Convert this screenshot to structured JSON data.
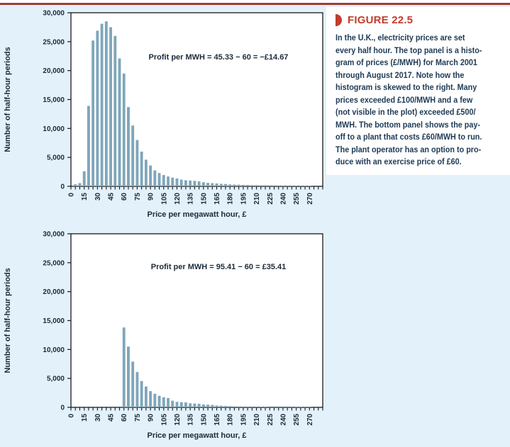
{
  "theme": {
    "background": "#e3f1fb",
    "top_rule": "#a53a33",
    "accent_red": "#c33c2b",
    "caption_text": "#1e3a55",
    "chart_text": "#1c2a3a",
    "bar_fill": "#7fa6ba",
    "axis_line": "#1a1a1a",
    "plot_bg": "#ffffff",
    "panel_bg": "#ffffff"
  },
  "figure_caption": {
    "label": "FIGURE 22.5",
    "icon": "right-half-disc-icon",
    "text_lines": [
      "In the U.K., electricity prices are set",
      "every half hour. The top panel is a histo-",
      "gram of prices (£/MWH) for March 2001",
      "through August 2017. Note how the",
      "histogram is skewed to the right. Many",
      "prices exceeded £100/MWH and a few",
      "(not visible in the plot) exceeded £500/",
      "MWH. The bottom panel shows the pay-",
      "off to a plant that costs £60/MWH to run.",
      "The plant operator has an option to pro-",
      "duce with an exercise price of £60."
    ]
  },
  "chart_data": [
    {
      "type": "bar",
      "panel": "top",
      "ylabel": "Number of half-hour periods",
      "xlabel": "Price per megawatt hour, £",
      "annotation": "Profit per MWH = 45.33 − 60 = −£14.67",
      "ylim": [
        0,
        30000
      ],
      "xlim": [
        0,
        285
      ],
      "yticks": [
        0,
        5000,
        10000,
        15000,
        20000,
        25000,
        30000
      ],
      "ytick_labels": [
        "0",
        "5,000",
        "10,000",
        "15,000",
        "20,000",
        "25,000",
        "30,000"
      ],
      "xtick_minor_step": 5,
      "xtick_label_every": 15,
      "xtick_label_max": 270,
      "bin_width": 5,
      "grid": false,
      "legend": "none",
      "x": [
        5,
        10,
        15,
        20,
        25,
        30,
        35,
        40,
        45,
        50,
        55,
        60,
        65,
        70,
        75,
        80,
        85,
        90,
        95,
        100,
        105,
        110,
        115,
        120,
        125,
        130,
        135,
        140,
        145,
        150,
        155,
        160,
        165,
        170,
        175,
        180,
        185,
        190,
        195,
        200,
        205,
        210,
        215,
        220,
        225,
        230,
        235,
        240,
        245,
        250,
        255,
        260,
        265,
        270
      ],
      "values": [
        350,
        550,
        2600,
        13900,
        25200,
        26900,
        28100,
        28500,
        27500,
        26000,
        22100,
        19500,
        13700,
        10500,
        8000,
        6000,
        4600,
        3600,
        2750,
        2300,
        1950,
        1700,
        1500,
        1350,
        1150,
        1050,
        1000,
        950,
        850,
        700,
        600,
        550,
        500,
        430,
        400,
        330,
        300,
        280,
        250,
        230,
        200,
        200,
        180,
        180,
        160,
        150,
        140,
        130,
        130,
        120,
        110,
        100,
        100,
        90
      ]
    },
    {
      "type": "bar",
      "panel": "bottom",
      "ylabel": "Number of half-hour periods",
      "xlabel": "Price per megawatt hour, £",
      "annotation": "Profit per MWH = 95.41 − 60 = £35.41",
      "ylim": [
        0,
        30000
      ],
      "xlim": [
        0,
        285
      ],
      "yticks": [
        0,
        5000,
        10000,
        15000,
        20000,
        25000,
        30000
      ],
      "ytick_labels": [
        "0",
        "5,000",
        "10,000",
        "15,000",
        "20,000",
        "25,000",
        "30,000"
      ],
      "xtick_minor_step": 5,
      "xtick_label_every": 15,
      "xtick_label_max": 270,
      "bin_width": 5,
      "grid": false,
      "legend": "none",
      "x": [
        60,
        65,
        70,
        75,
        80,
        85,
        90,
        95,
        100,
        105,
        110,
        115,
        120,
        125,
        130,
        135,
        140,
        145,
        150,
        155,
        160,
        165,
        170,
        175,
        180,
        185,
        190,
        195,
        200,
        205,
        210,
        215,
        220,
        225,
        230,
        235,
        240,
        245,
        250,
        255,
        260,
        265,
        270
      ],
      "values": [
        13800,
        10500,
        7900,
        6100,
        4550,
        3600,
        2800,
        2350,
        2000,
        1750,
        1600,
        1150,
        950,
        900,
        850,
        700,
        660,
        620,
        500,
        460,
        420,
        320,
        280,
        230,
        210,
        170,
        150,
        130,
        120,
        100,
        100,
        90,
        90,
        150,
        150,
        160,
        150,
        150,
        110,
        60,
        60,
        50,
        50
      ]
    }
  ]
}
